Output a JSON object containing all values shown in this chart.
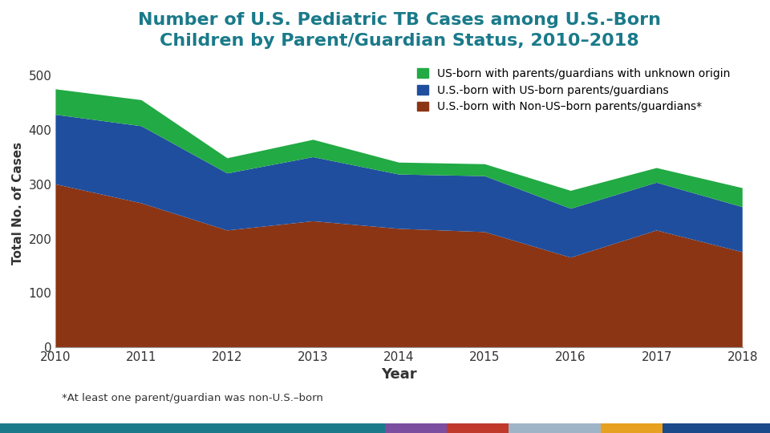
{
  "years": [
    2010,
    2011,
    2012,
    2013,
    2014,
    2015,
    2016,
    2017,
    2018
  ],
  "non_us_born_parents": [
    300,
    265,
    215,
    232,
    218,
    212,
    165,
    215,
    175
  ],
  "us_born_parents": [
    128,
    142,
    105,
    118,
    100,
    103,
    90,
    88,
    83
  ],
  "unknown_origin": [
    47,
    48,
    28,
    32,
    22,
    22,
    33,
    27,
    35
  ],
  "colors": {
    "non_us_born": "#8B3515",
    "us_born": "#1F4E9E",
    "unknown": "#22AA44"
  },
  "title_line1": "Number of U.S. Pediatric TB Cases among U.S.-Born",
  "title_line2": "Children by Parent/Guardian Status, 2010–2018",
  "ylabel": "Total No. of Cases",
  "xlabel": "Year",
  "legend_labels_ordered": [
    "US-born with parents/guardians with unknown origin",
    "U.S.-born with US-born parents/guardians",
    "U.S.-born with Non-US–born parents/guardians*"
  ],
  "footnote": "*At least one parent/guardian was non-U.S.–born",
  "title_color": "#1A7A8A",
  "ylim": [
    0,
    530
  ],
  "yticks": [
    0,
    100,
    200,
    300,
    400,
    500
  ],
  "bottom_bar_colors": [
    "#1A7A8A",
    "#7B4EA0",
    "#C0392B",
    "#A0B4C8",
    "#E8A020",
    "#1A4A8A"
  ],
  "bottom_bar_widths": [
    0.5,
    0.08,
    0.08,
    0.12,
    0.08,
    0.14
  ]
}
